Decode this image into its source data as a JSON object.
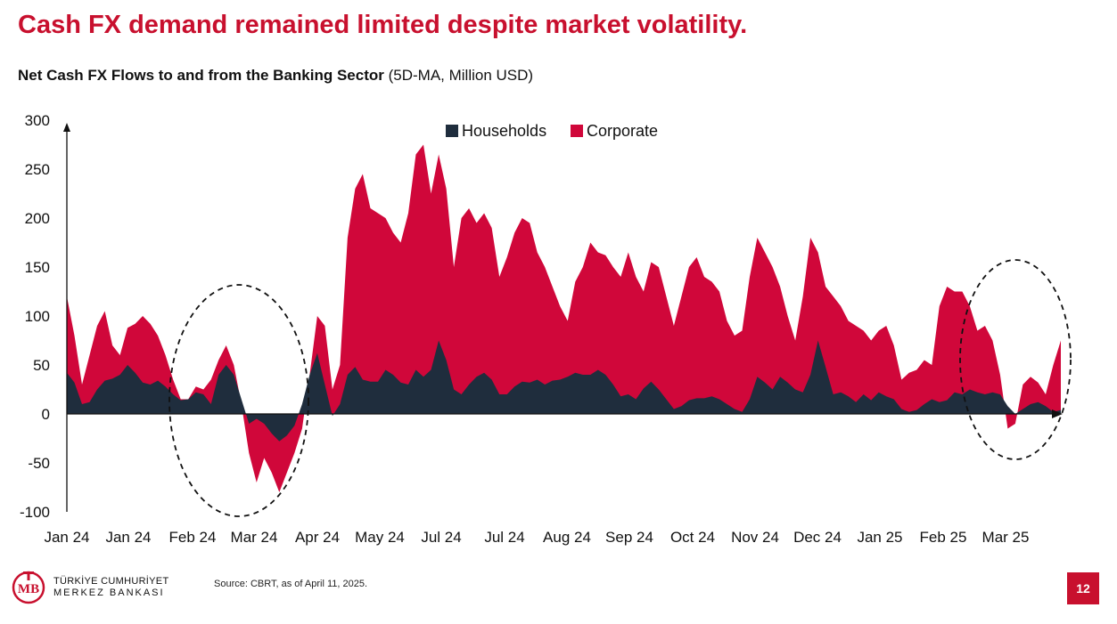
{
  "headline": "Cash FX demand remained limited despite market volatility.",
  "subtitle": {
    "bold": "Net Cash FX Flows to and from the Banking Sector",
    "rest": " (5D-MA, Million USD)"
  },
  "source": "Source: CBRT, as of April 11, 2025.",
  "page_number": "12",
  "logo": {
    "line1": "TÜRKİYE CUMHURİYET",
    "line2": "MERKEZ BANKASI",
    "mark": "TCMB"
  },
  "colors": {
    "households": "#1f2d3d",
    "corporate": "#d0073a",
    "headline": "#c8102e"
  },
  "chart_data": {
    "type": "area",
    "stacked": true,
    "x_ticks": [
      "Jan 24",
      "Jan 24",
      "Feb 24",
      "Mar 24",
      "Apr 24",
      "May 24",
      "Jul 24",
      "Jul 24",
      "Aug 24",
      "Sep 24",
      "Oct 24",
      "Nov 24",
      "Dec 24",
      "Jan 25",
      "Feb 25",
      "Mar 25"
    ],
    "y_ticks": [
      300,
      250,
      200,
      150,
      100,
      50,
      0,
      -50,
      -100
    ],
    "ylim": [
      -100,
      300
    ],
    "legend": {
      "position": "top-center",
      "entries": [
        "Households",
        "Corporate"
      ]
    },
    "annotations": [
      "dashed-ellipse Feb–Mar 24",
      "dashed-ellipse Feb–Mar 25"
    ],
    "series": [
      {
        "name": "Households",
        "values": [
          [
            0,
            42
          ],
          [
            2,
            32
          ],
          [
            4,
            10
          ],
          [
            6,
            12
          ],
          [
            8,
            25
          ],
          [
            10,
            34
          ],
          [
            12,
            36
          ],
          [
            14,
            40
          ],
          [
            16,
            50
          ],
          [
            18,
            42
          ],
          [
            20,
            32
          ],
          [
            22,
            30
          ],
          [
            24,
            34
          ],
          [
            26,
            28
          ],
          [
            28,
            20
          ],
          [
            30,
            14
          ],
          [
            32,
            15
          ],
          [
            34,
            22
          ],
          [
            36,
            20
          ],
          [
            38,
            10
          ],
          [
            40,
            40
          ],
          [
            42,
            50
          ],
          [
            44,
            40
          ],
          [
            46,
            15
          ],
          [
            48,
            -10
          ],
          [
            50,
            -5
          ],
          [
            52,
            -10
          ],
          [
            54,
            -20
          ],
          [
            56,
            -28
          ],
          [
            58,
            -22
          ],
          [
            60,
            -12
          ],
          [
            62,
            10
          ],
          [
            64,
            40
          ],
          [
            66,
            62
          ],
          [
            68,
            30
          ],
          [
            70,
            -2
          ],
          [
            72,
            10
          ],
          [
            74,
            40
          ],
          [
            76,
            48
          ],
          [
            78,
            35
          ],
          [
            80,
            33
          ],
          [
            82,
            33
          ],
          [
            84,
            45
          ],
          [
            86,
            40
          ],
          [
            88,
            32
          ],
          [
            90,
            30
          ],
          [
            92,
            45
          ],
          [
            94,
            38
          ],
          [
            96,
            45
          ],
          [
            98,
            75
          ],
          [
            100,
            55
          ],
          [
            102,
            25
          ],
          [
            104,
            20
          ],
          [
            106,
            30
          ],
          [
            108,
            38
          ],
          [
            110,
            42
          ],
          [
            112,
            35
          ],
          [
            114,
            20
          ],
          [
            116,
            20
          ],
          [
            118,
            28
          ],
          [
            120,
            33
          ],
          [
            122,
            32
          ],
          [
            124,
            35
          ],
          [
            126,
            30
          ],
          [
            128,
            34
          ],
          [
            130,
            35
          ],
          [
            132,
            38
          ],
          [
            134,
            42
          ],
          [
            136,
            40
          ],
          [
            138,
            40
          ],
          [
            140,
            45
          ],
          [
            142,
            40
          ],
          [
            144,
            30
          ],
          [
            146,
            18
          ],
          [
            148,
            20
          ],
          [
            150,
            15
          ],
          [
            152,
            26
          ],
          [
            154,
            33
          ],
          [
            156,
            25
          ],
          [
            158,
            15
          ],
          [
            160,
            5
          ],
          [
            162,
            8
          ],
          [
            164,
            14
          ],
          [
            166,
            16
          ],
          [
            168,
            16
          ],
          [
            170,
            18
          ],
          [
            172,
            15
          ],
          [
            174,
            10
          ],
          [
            176,
            5
          ],
          [
            178,
            2
          ],
          [
            180,
            15
          ],
          [
            182,
            38
          ],
          [
            184,
            32
          ],
          [
            186,
            25
          ],
          [
            188,
            38
          ],
          [
            190,
            32
          ],
          [
            192,
            25
          ],
          [
            194,
            22
          ],
          [
            196,
            40
          ],
          [
            198,
            75
          ],
          [
            200,
            48
          ],
          [
            202,
            20
          ],
          [
            204,
            22
          ],
          [
            206,
            18
          ],
          [
            208,
            12
          ],
          [
            210,
            20
          ],
          [
            212,
            14
          ],
          [
            214,
            22
          ],
          [
            216,
            18
          ],
          [
            218,
            15
          ],
          [
            220,
            5
          ],
          [
            222,
            2
          ],
          [
            224,
            4
          ],
          [
            226,
            10
          ],
          [
            228,
            15
          ],
          [
            230,
            12
          ],
          [
            232,
            14
          ],
          [
            234,
            22
          ],
          [
            236,
            20
          ],
          [
            238,
            25
          ],
          [
            240,
            22
          ],
          [
            242,
            20
          ],
          [
            244,
            22
          ],
          [
            246,
            20
          ],
          [
            248,
            8
          ],
          [
            250,
            0
          ],
          [
            252,
            5
          ],
          [
            254,
            10
          ],
          [
            256,
            12
          ],
          [
            258,
            8
          ],
          [
            260,
            2
          ],
          [
            262,
            4
          ]
        ]
      },
      {
        "name": "Corporate",
        "values": [
          [
            0,
            120
          ],
          [
            2,
            80
          ],
          [
            4,
            30
          ],
          [
            6,
            60
          ],
          [
            8,
            90
          ],
          [
            10,
            105
          ],
          [
            12,
            70
          ],
          [
            14,
            60
          ],
          [
            16,
            88
          ],
          [
            18,
            92
          ],
          [
            20,
            100
          ],
          [
            22,
            92
          ],
          [
            24,
            80
          ],
          [
            26,
            60
          ],
          [
            28,
            35
          ],
          [
            30,
            15
          ],
          [
            32,
            15
          ],
          [
            34,
            28
          ],
          [
            36,
            25
          ],
          [
            38,
            35
          ],
          [
            40,
            55
          ],
          [
            42,
            70
          ],
          [
            44,
            50
          ],
          [
            46,
            10
          ],
          [
            48,
            -40
          ],
          [
            50,
            -70
          ],
          [
            52,
            -45
          ],
          [
            54,
            -60
          ],
          [
            56,
            -80
          ],
          [
            58,
            -60
          ],
          [
            60,
            -40
          ],
          [
            62,
            -15
          ],
          [
            64,
            40
          ],
          [
            66,
            100
          ],
          [
            68,
            90
          ],
          [
            70,
            25
          ],
          [
            72,
            50
          ],
          [
            74,
            180
          ],
          [
            76,
            230
          ],
          [
            78,
            245
          ],
          [
            80,
            210
          ],
          [
            82,
            205
          ],
          [
            84,
            200
          ],
          [
            86,
            185
          ],
          [
            88,
            175
          ],
          [
            90,
            205
          ],
          [
            92,
            265
          ],
          [
            94,
            275
          ],
          [
            96,
            225
          ],
          [
            98,
            265
          ],
          [
            100,
            230
          ],
          [
            102,
            150
          ],
          [
            104,
            200
          ],
          [
            106,
            210
          ],
          [
            108,
            195
          ],
          [
            110,
            205
          ],
          [
            112,
            190
          ],
          [
            114,
            140
          ],
          [
            116,
            160
          ],
          [
            118,
            185
          ],
          [
            120,
            200
          ],
          [
            122,
            195
          ],
          [
            124,
            165
          ],
          [
            126,
            150
          ],
          [
            128,
            130
          ],
          [
            130,
            110
          ],
          [
            132,
            95
          ],
          [
            134,
            135
          ],
          [
            136,
            150
          ],
          [
            138,
            175
          ],
          [
            140,
            165
          ],
          [
            142,
            162
          ],
          [
            144,
            150
          ],
          [
            146,
            140
          ],
          [
            148,
            165
          ],
          [
            150,
            140
          ],
          [
            152,
            125
          ],
          [
            154,
            155
          ],
          [
            156,
            150
          ],
          [
            158,
            120
          ],
          [
            160,
            90
          ],
          [
            162,
            120
          ],
          [
            164,
            150
          ],
          [
            166,
            160
          ],
          [
            168,
            140
          ],
          [
            170,
            135
          ],
          [
            172,
            125
          ],
          [
            174,
            95
          ],
          [
            176,
            80
          ],
          [
            178,
            85
          ],
          [
            180,
            140
          ],
          [
            182,
            180
          ],
          [
            184,
            165
          ],
          [
            186,
            150
          ],
          [
            188,
            130
          ],
          [
            190,
            100
          ],
          [
            192,
            75
          ],
          [
            194,
            120
          ],
          [
            196,
            180
          ],
          [
            198,
            165
          ],
          [
            200,
            130
          ],
          [
            202,
            120
          ],
          [
            204,
            110
          ],
          [
            206,
            95
          ],
          [
            208,
            90
          ],
          [
            210,
            85
          ],
          [
            212,
            75
          ],
          [
            214,
            85
          ],
          [
            216,
            90
          ],
          [
            218,
            70
          ],
          [
            220,
            35
          ],
          [
            222,
            42
          ],
          [
            224,
            45
          ],
          [
            226,
            55
          ],
          [
            228,
            50
          ],
          [
            230,
            110
          ],
          [
            232,
            130
          ],
          [
            234,
            125
          ],
          [
            236,
            125
          ],
          [
            238,
            110
          ],
          [
            240,
            85
          ],
          [
            242,
            90
          ],
          [
            244,
            75
          ],
          [
            246,
            40
          ],
          [
            248,
            -15
          ],
          [
            250,
            -10
          ],
          [
            252,
            30
          ],
          [
            254,
            38
          ],
          [
            256,
            32
          ],
          [
            258,
            20
          ],
          [
            260,
            50
          ],
          [
            262,
            75
          ]
        ]
      }
    ]
  }
}
